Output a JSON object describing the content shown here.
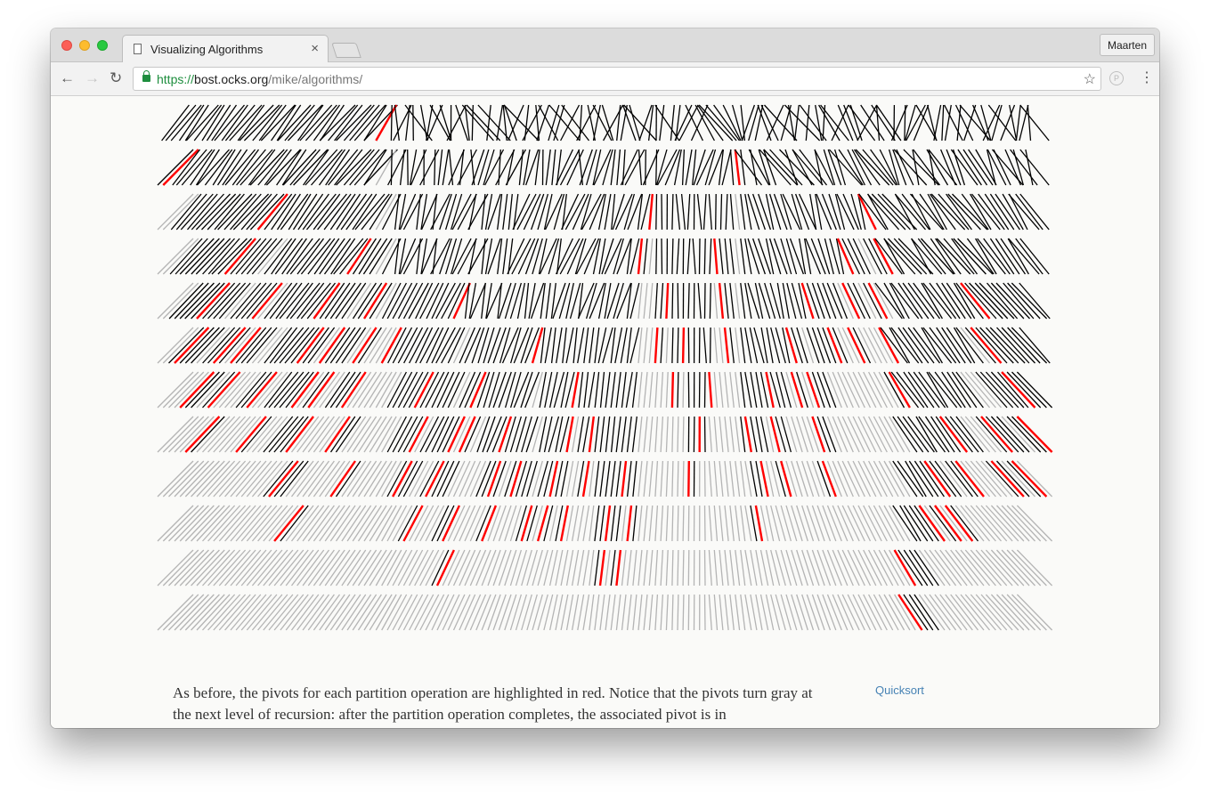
{
  "browser": {
    "tab": {
      "title": "Visualizing Algorithms",
      "close_glyph": "×"
    },
    "profile_name": "Maarten",
    "url": {
      "scheme": "https://",
      "host": "bost.ocks.org",
      "path": "/mike/algorithms/"
    },
    "icons": {
      "back": "←",
      "forward": "→",
      "reload": "↻",
      "bookmark": "☆",
      "extension": "P",
      "menu": "⋮"
    }
  },
  "visualization": {
    "type": "quicksort-recursion-levels",
    "levels": 12,
    "colors": {
      "active": "#000000",
      "inactive": "#b4b4b4",
      "pivot": "#ff0000"
    }
  },
  "article": {
    "paragraph": "As before, the pivots for each partition operation are highlighted in red. Notice that the pivots turn gray at the next level of recursion: after the partition operation completes, the associated pivot is in",
    "side_link": "Quicksort"
  }
}
